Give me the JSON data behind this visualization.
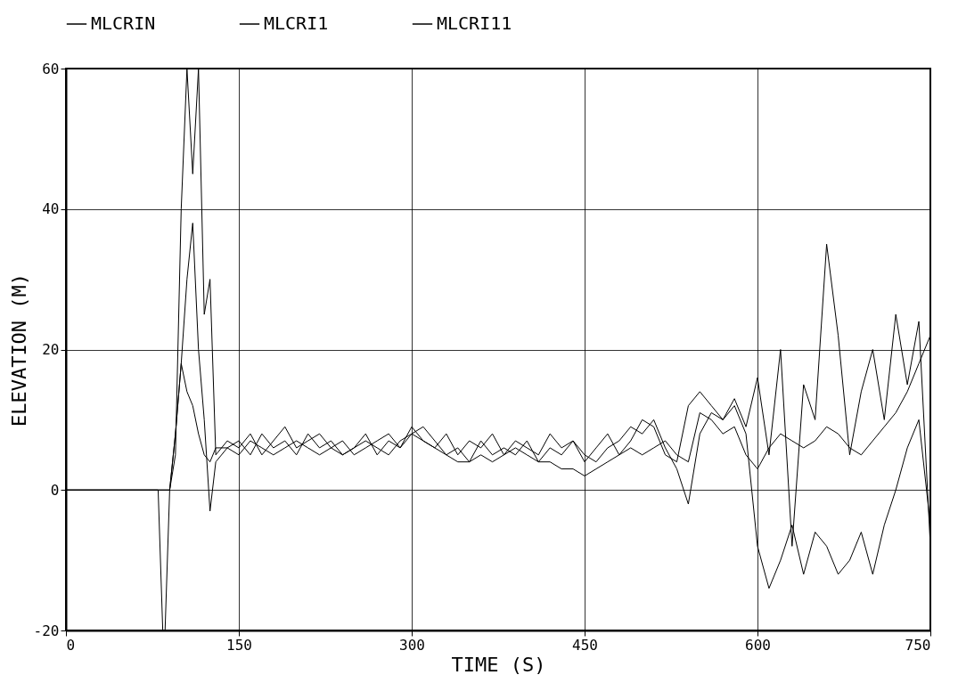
{
  "chart_data": {
    "type": "line",
    "xlabel": "TIME (S)",
    "ylabel": "ELEVATION (M)",
    "xlim": [
      0,
      750
    ],
    "xticks": [
      0,
      150,
      300,
      450,
      600,
      750
    ],
    "ylim": [
      -20,
      60
    ],
    "yticks": [
      -20,
      0,
      20,
      40,
      60
    ],
    "grid": true,
    "legend": "top",
    "series": [
      {
        "name": "MLCRIN",
        "color": "#000000",
        "x": [
          0,
          80,
          90,
          95,
          100,
          105,
          110,
          115,
          120,
          125,
          130,
          140,
          150,
          160,
          170,
          180,
          190,
          200,
          210,
          220,
          230,
          240,
          250,
          260,
          270,
          280,
          290,
          300,
          310,
          320,
          330,
          340,
          350,
          360,
          370,
          380,
          390,
          400,
          410,
          420,
          430,
          440,
          450,
          460,
          470,
          480,
          490,
          500,
          510,
          520,
          530,
          540,
          550,
          560,
          570,
          580,
          590,
          600,
          610,
          620,
          630,
          640,
          650,
          660,
          670,
          680,
          690,
          700,
          710,
          720,
          730,
          740,
          750
        ],
        "values": [
          0,
          0,
          0,
          8,
          18,
          14,
          12,
          8,
          5,
          4,
          6,
          6,
          5,
          7,
          6,
          5,
          6,
          7,
          6,
          5,
          6,
          5,
          6,
          7,
          6,
          5,
          7,
          8,
          7,
          6,
          5,
          4,
          4,
          5,
          4,
          5,
          6,
          5,
          4,
          4,
          3,
          3,
          2,
          3,
          4,
          5,
          6,
          5,
          6,
          7,
          5,
          4,
          11,
          10,
          8,
          9,
          5,
          3,
          6,
          8,
          7,
          6,
          7,
          9,
          8,
          6,
          5,
          7,
          9,
          11,
          14,
          18,
          22
        ]
      },
      {
        "name": "MLCRI1",
        "color": "#000000",
        "x": [
          0,
          80,
          84,
          86,
          90,
          95,
          100,
          105,
          110,
          115,
          120,
          125,
          130,
          140,
          150,
          160,
          170,
          180,
          190,
          200,
          210,
          220,
          230,
          240,
          250,
          260,
          270,
          280,
          290,
          300,
          310,
          320,
          330,
          340,
          350,
          360,
          370,
          380,
          390,
          400,
          410,
          420,
          430,
          440,
          450,
          460,
          470,
          480,
          490,
          500,
          510,
          520,
          530,
          540,
          550,
          560,
          570,
          580,
          590,
          600,
          610,
          620,
          630,
          640,
          650,
          660,
          670,
          680,
          690,
          700,
          710,
          720,
          730,
          740,
          750
        ],
        "values": [
          0,
          0,
          -20,
          -20,
          0,
          8,
          18,
          30,
          38,
          20,
          10,
          -3,
          4,
          6,
          7,
          5,
          8,
          6,
          7,
          5,
          8,
          6,
          7,
          5,
          6,
          8,
          5,
          7,
          6,
          8,
          9,
          7,
          5,
          6,
          4,
          7,
          5,
          6,
          5,
          7,
          4,
          6,
          5,
          7,
          5,
          4,
          6,
          7,
          9,
          8,
          10,
          6,
          3,
          -2,
          8,
          11,
          10,
          12,
          8,
          -8,
          -14,
          -10,
          -5,
          -12,
          -6,
          -8,
          -12,
          -10,
          -6,
          -12,
          -5,
          0,
          6,
          10,
          -5
        ]
      },
      {
        "name": "MLCRI11",
        "color": "#000000",
        "x": [
          0,
          90,
          95,
          100,
          105,
          110,
          115,
          120,
          125,
          130,
          140,
          150,
          160,
          170,
          180,
          190,
          200,
          210,
          220,
          230,
          240,
          250,
          260,
          270,
          280,
          290,
          300,
          310,
          320,
          330,
          340,
          350,
          360,
          370,
          380,
          390,
          400,
          410,
          420,
          430,
          440,
          450,
          460,
          470,
          480,
          490,
          500,
          510,
          520,
          530,
          540,
          550,
          560,
          570,
          580,
          590,
          600,
          610,
          620,
          630,
          640,
          650,
          660,
          670,
          680,
          690,
          700,
          710,
          720,
          730,
          740,
          750
        ],
        "values": [
          0,
          0,
          5,
          40,
          60,
          45,
          60,
          25,
          30,
          5,
          7,
          6,
          8,
          5,
          7,
          9,
          6,
          7,
          8,
          6,
          7,
          5,
          6,
          7,
          8,
          6,
          9,
          7,
          6,
          8,
          5,
          7,
          6,
          8,
          5,
          7,
          6,
          5,
          8,
          6,
          7,
          4,
          6,
          8,
          5,
          7,
          10,
          9,
          5,
          4,
          12,
          14,
          12,
          10,
          13,
          9,
          16,
          5,
          20,
          -8,
          15,
          10,
          35,
          22,
          5,
          14,
          20,
          10,
          25,
          15,
          24,
          -8
        ]
      }
    ]
  }
}
